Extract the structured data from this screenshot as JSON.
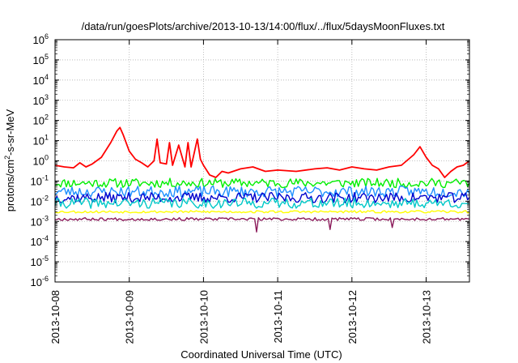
{
  "chart_data": {
    "type": "line",
    "title": "/data/run/goesPlots/archive/2013-10-13/14:00/flux/../flux/5daysMoonFluxes.txt",
    "xlabel": "Coordinated Universal Time (UTC)",
    "ylabel": {
      "prefix": "protons/cm",
      "sup": "2",
      "suffix": "-s-sr-MeV"
    },
    "y_scale": "log",
    "ylim": [
      1e-06,
      1000000.0
    ],
    "xlim": [
      "2013-10-08T00:00",
      "2013-10-13T14:00"
    ],
    "grid": true,
    "y_ticks": [
      {
        "value": 1e-06,
        "base": "10",
        "exp": "-6"
      },
      {
        "value": 1e-05,
        "base": "10",
        "exp": "-5"
      },
      {
        "value": 0.0001,
        "base": "10",
        "exp": "-4"
      },
      {
        "value": 0.001,
        "base": "10",
        "exp": "-3"
      },
      {
        "value": 0.01,
        "base": "10",
        "exp": "-2"
      },
      {
        "value": 0.1,
        "base": "10",
        "exp": "-1"
      },
      {
        "value": 1.0,
        "base": "10",
        "exp": "0"
      },
      {
        "value": 10.0,
        "base": "10",
        "exp": "1"
      },
      {
        "value": 100.0,
        "base": "10",
        "exp": "2"
      },
      {
        "value": 1000.0,
        "base": "10",
        "exp": "3"
      },
      {
        "value": 10000.0,
        "base": "10",
        "exp": "4"
      },
      {
        "value": 100000.0,
        "base": "10",
        "exp": "5"
      },
      {
        "value": 1000000.0,
        "base": "10",
        "exp": "6"
      }
    ],
    "x_ticks": [
      "2013-10-08",
      "2013-10-09",
      "2013-10-10",
      "2013-10-11",
      "2013-10-12",
      "2013-10-13"
    ],
    "series": [
      {
        "color": "#ff0000",
        "x": [
          "2013-10-08T00:00",
          "2013-10-08T03:00",
          "2013-10-08T06:00",
          "2013-10-08T08:00",
          "2013-10-08T10:00",
          "2013-10-08T12:00",
          "2013-10-08T15:00",
          "2013-10-08T18:00",
          "2013-10-08T20:00",
          "2013-10-08T21:00",
          "2013-10-08T22:00",
          "2013-10-09T00:00",
          "2013-10-09T02:00",
          "2013-10-09T04:00",
          "2013-10-09T06:00",
          "2013-10-09T08:00",
          "2013-10-09T09:00",
          "2013-10-09T10:00",
          "2013-10-09T12:00",
          "2013-10-09T13:00",
          "2013-10-09T14:00",
          "2013-10-09T16:00",
          "2013-10-09T18:00",
          "2013-10-09T19:00",
          "2013-10-09T20:00",
          "2013-10-09T22:00",
          "2013-10-09T23:00",
          "2013-10-10T00:00",
          "2013-10-10T02:00",
          "2013-10-10T04:00",
          "2013-10-10T06:00",
          "2013-10-10T08:00",
          "2013-10-10T12:00",
          "2013-10-10T16:00",
          "2013-10-10T20:00",
          "2013-10-11T00:00",
          "2013-10-11T06:00",
          "2013-10-11T12:00",
          "2013-10-11T16:00",
          "2013-10-11T20:00",
          "2013-10-12T00:00",
          "2013-10-12T04:00",
          "2013-10-12T08:00",
          "2013-10-12T12:00",
          "2013-10-12T16:00",
          "2013-10-12T20:00",
          "2013-10-12T22:00",
          "2013-10-13T00:00",
          "2013-10-13T02:00",
          "2013-10-13T04:00",
          "2013-10-13T06:00",
          "2013-10-13T08:00",
          "2013-10-13T10:00",
          "2013-10-13T12:00",
          "2013-10-13T14:00"
        ],
        "y": [
          0.6,
          0.5,
          0.45,
          0.8,
          0.5,
          0.7,
          1.5,
          8,
          30,
          45,
          20,
          3,
          1.2,
          0.8,
          0.5,
          1,
          12,
          0.8,
          0.7,
          8,
          0.6,
          6,
          0.5,
          8,
          0.5,
          12,
          1.2,
          0.6,
          0.2,
          0.15,
          0.3,
          0.25,
          0.4,
          0.5,
          0.3,
          0.35,
          0.3,
          0.4,
          0.45,
          0.35,
          0.5,
          0.4,
          0.35,
          0.5,
          0.6,
          2,
          5,
          1.5,
          0.6,
          0.4,
          0.15,
          0.3,
          0.5,
          0.6,
          1
        ]
      },
      {
        "color": "#00ee00",
        "level": 0.08,
        "spread": 1.7,
        "seed": 11
      },
      {
        "color": "#1e90ff",
        "level": 0.03,
        "spread": 1.9,
        "seed": 23
      },
      {
        "color": "#0000cc",
        "level": 0.015,
        "spread": 1.8,
        "seed": 37
      },
      {
        "color": "#00c8c8",
        "level": 0.008,
        "spread": 1.8,
        "seed": 41
      },
      {
        "color": "#ffff00",
        "level": 0.003,
        "spread": 1.15,
        "seed": 53
      },
      {
        "color": "#8b1a5a",
        "level": 0.0013,
        "spread": 1.18,
        "seed": 67,
        "dips": [
          {
            "x": "2013-10-10T17:00",
            "y": 0.0003
          },
          {
            "x": "2013-10-11T17:00",
            "y": 0.0004
          },
          {
            "x": "2013-10-12T13:00",
            "y": 0.0005
          }
        ]
      }
    ]
  }
}
